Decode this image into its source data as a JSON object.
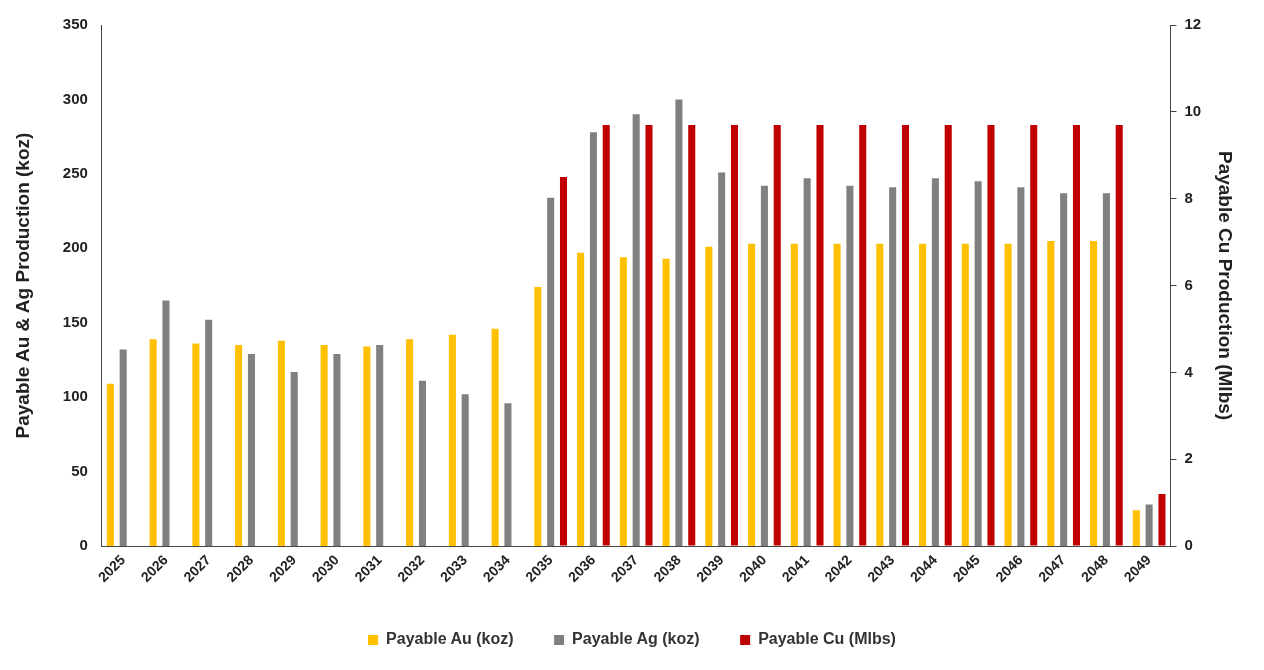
{
  "chart_data": {
    "type": "bar",
    "ylabel": "Payable Au & Ag Production (koz)",
    "y2label": "Payable Cu Production (Mlbs)",
    "categories": [
      "2025",
      "2026",
      "2027",
      "2028",
      "2029",
      "2030",
      "2031",
      "2032",
      "2033",
      "2034",
      "2035",
      "2036",
      "2037",
      "2038",
      "2039",
      "2040",
      "2041",
      "2042",
      "2043",
      "2044",
      "2045",
      "2046",
      "2047",
      "2048",
      "2049"
    ],
    "series": [
      {
        "name": "Payable Au (koz)",
        "color": "#ffc000",
        "values": [
          109,
          139,
          136,
          135,
          138,
          135,
          134,
          139,
          142,
          146,
          174,
          197,
          194,
          193,
          201,
          203,
          203,
          203,
          203,
          203,
          203,
          203,
          205,
          205,
          24
        ]
      },
      {
        "name": "Payable Ag (koz)",
        "color": "#808080",
        "values": [
          132,
          165,
          152,
          129,
          117,
          129,
          135,
          111,
          102,
          96,
          234,
          278,
          290,
          300,
          251,
          242,
          247,
          242,
          241,
          247,
          245,
          241,
          237,
          237,
          28
        ]
      },
      {
        "name": "Payable Cu (Mlbs)",
        "color": "#c00000",
        "axis": "y2",
        "values": [
          null,
          null,
          null,
          null,
          null,
          null,
          null,
          null,
          null,
          null,
          8.5,
          9.7,
          9.7,
          9.7,
          9.7,
          9.7,
          9.7,
          9.7,
          9.7,
          9.7,
          9.7,
          9.7,
          9.7,
          9.7,
          1.2
        ]
      }
    ],
    "ylim": [
      0,
      350
    ],
    "yticks": [
      0,
      50,
      100,
      150,
      200,
      250,
      300,
      350
    ],
    "y2lim": [
      0,
      12
    ],
    "y2ticks": [
      0,
      2,
      4,
      6,
      8,
      10,
      12
    ],
    "grid": false,
    "legend": "bottom"
  }
}
